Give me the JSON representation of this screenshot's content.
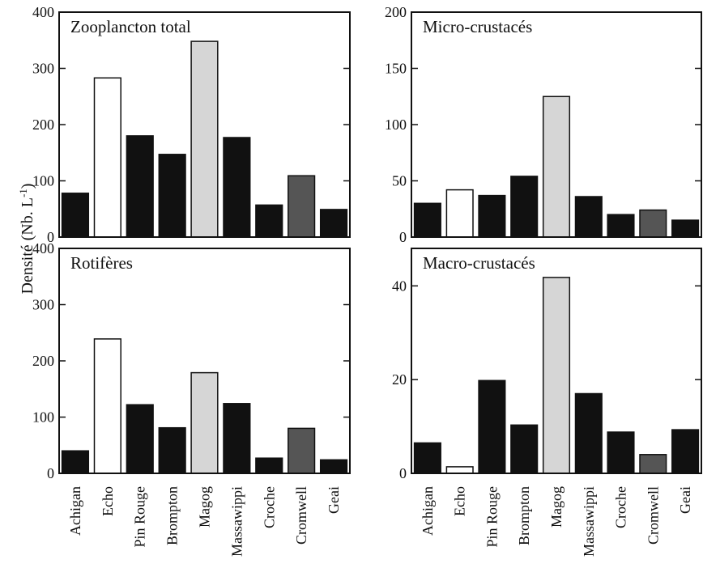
{
  "figure": {
    "ylabel_main": "Densité (Nb. L",
    "ylabel_sup": "-1",
    "ylabel_close": ")"
  },
  "chart_data": [
    {
      "type": "bar",
      "title": "Zooplancton total",
      "categories": [
        "Achigan",
        "Echo",
        "Pin Rouge",
        "Brompton",
        "Magog",
        "Massawippi",
        "Croche",
        "Cromwell",
        "Geai"
      ],
      "values": [
        78,
        283,
        180,
        147,
        348,
        177,
        57,
        109,
        49
      ],
      "ylim": [
        0,
        400
      ],
      "yticks": [
        0,
        100,
        200,
        300,
        400
      ]
    },
    {
      "type": "bar",
      "title": "Micro-crustacés",
      "categories": [
        "Achigan",
        "Echo",
        "Pin Rouge",
        "Brompton",
        "Magog",
        "Massawippi",
        "Croche",
        "Cromwell",
        "Geai"
      ],
      "values": [
        30,
        42,
        37,
        54,
        125,
        36,
        20,
        24,
        15
      ],
      "ylim": [
        0,
        200
      ],
      "yticks": [
        0,
        50,
        100,
        150,
        200
      ]
    },
    {
      "type": "bar",
      "title": "Rotifères",
      "categories": [
        "Achigan",
        "Echo",
        "Pin Rouge",
        "Brompton",
        "Magog",
        "Massawippi",
        "Croche",
        "Cromwell",
        "Geai"
      ],
      "values": [
        40,
        239,
        122,
        81,
        179,
        124,
        27,
        80,
        24
      ],
      "ylim": [
        0,
        400
      ],
      "yticks": [
        0,
        100,
        200,
        300,
        400
      ]
    },
    {
      "type": "bar",
      "title": "Macro-crustacés",
      "categories": [
        "Achigan",
        "Echo",
        "Pin Rouge",
        "Brompton",
        "Magog",
        "Massawippi",
        "Croche",
        "Cromwell",
        "Geai"
      ],
      "values": [
        6.5,
        1.4,
        19.8,
        10.3,
        41.8,
        17,
        8.8,
        4,
        9.3
      ],
      "ylim": [
        0,
        48
      ],
      "yticks": [
        0,
        20,
        40
      ]
    }
  ],
  "colors": {
    "black": "#111111",
    "white": "#ffffff",
    "light_gray": "#d6d6d6",
    "dark_gray": "#555555"
  },
  "bar_fills": [
    "black",
    "white",
    "black",
    "black",
    "light_gray",
    "black",
    "black",
    "dark_gray",
    "black"
  ]
}
